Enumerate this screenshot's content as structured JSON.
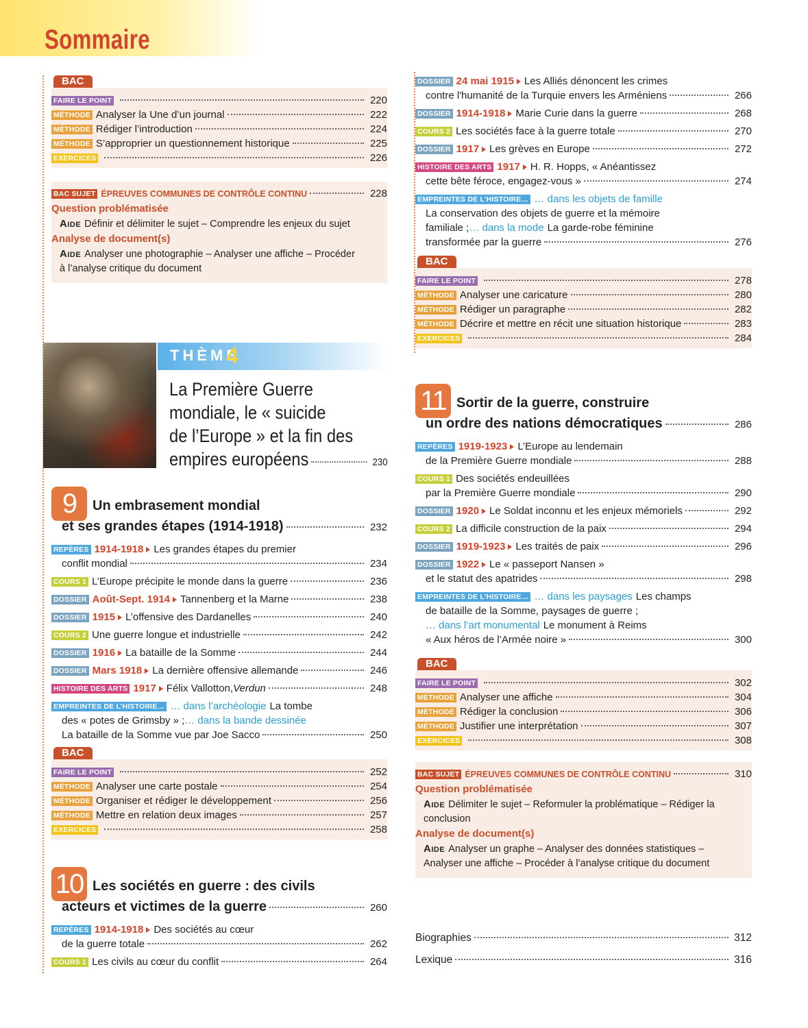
{
  "header": {
    "title": "Sommaire"
  },
  "left": [
    {
      "type": "bac",
      "label": "BAC",
      "entries": [
        {
          "tag": "FAIRE LE POINT",
          "tag_color": "#9b6bb0",
          "lines": [
            []
          ],
          "page": 220
        },
        {
          "tag": "MÉTHODE",
          "tag_color": "#e9a23b",
          "lines": [
            [
              "Analyser la Une d’un journal"
            ]
          ],
          "page": 222
        },
        {
          "tag": "MÉTHODE",
          "tag_color": "#e9a23b",
          "lines": [
            [
              "Rédiger l’introduction"
            ]
          ],
          "page": 224
        },
        {
          "tag": "MÉTHODE",
          "tag_color": "#e9a23b",
          "lines": [
            [
              "S’approprier un questionnement historique"
            ]
          ],
          "page": 225
        },
        {
          "tag": "EXERCICES",
          "tag_color": "#f2c318",
          "lines": [
            []
          ],
          "page": 226
        }
      ]
    },
    {
      "type": "sujet",
      "tag": "BAC SUJET",
      "tag_color": "#c8502a",
      "heading": "ÉPREUVES COMMUNES DE CONTRÔLE CONTINU",
      "page": 228,
      "parts": [
        {
          "heading": "Question problématisée",
          "aide": "Aide",
          "lines": [
            "Définir et délimiter le sujet – Comprendre les enjeux du sujet"
          ]
        },
        {
          "heading": "Analyse de document(s)",
          "aide": "Aide",
          "lines": [
            "Analyser une photographie – Analyser une affiche – Procéder",
            "à l’analyse critique du document"
          ]
        }
      ]
    },
    {
      "type": "theme",
      "label": "THÈME",
      "number": 4,
      "lines": [
        "La Première Guerre",
        "mondiale, le « suicide",
        "de l’Europe » et la fin des",
        "empires européens"
      ],
      "page": 230
    },
    {
      "type": "chapter",
      "number": 9,
      "lines": [
        "Un embrasement mondial",
        "et ses grandes étapes (1914-1918)"
      ],
      "page": 232,
      "entries": [
        {
          "tag": "REPÈRES",
          "tag_color": "#4ea7df",
          "date": "1914-1918",
          "lines": [
            [
              "Les grandes étapes du premier"
            ],
            [
              "conflit mondial"
            ]
          ],
          "page": 234
        },
        {
          "tag": "COURS 1",
          "tag_color": "#c4cf3a",
          "lines": [
            [
              "L’Europe précipite le monde dans la guerre"
            ]
          ],
          "page": 236
        },
        {
          "tag": "DOSSIER",
          "tag_color": "#7aa3bf",
          "date": "Août-Sept. 1914",
          "lines": [
            [
              "Tannenberg et la Marne"
            ]
          ],
          "page": 238
        },
        {
          "tag": "DOSSIER",
          "tag_color": "#7aa3bf",
          "date": "1915",
          "lines": [
            [
              "L’offensive des Dardanelles"
            ]
          ],
          "page": 240
        },
        {
          "tag": "COURS 2",
          "tag_color": "#c4cf3a",
          "lines": [
            [
              "Une guerre longue et industrielle"
            ]
          ],
          "page": 242
        },
        {
          "tag": "DOSSIER",
          "tag_color": "#7aa3bf",
          "date": "1916",
          "lines": [
            [
              "La bataille de la Somme"
            ]
          ],
          "page": 244
        },
        {
          "tag": "DOSSIER",
          "tag_color": "#7aa3bf",
          "date": "Mars 1918",
          "lines": [
            [
              "La dernière offensive allemande"
            ]
          ],
          "page": 246
        },
        {
          "tag": "HISTOIRE DES ARTS",
          "tag_color": "#d4477f",
          "date": "1917",
          "lines": [
            [
              "Félix Vallotton, ",
              {
                "text": "Verdun",
                "style": "italic"
              }
            ]
          ],
          "page": 248
        },
        {
          "tag": "EMPREINTES DE L’HISTOIRE…",
          "tag_color": "#4ea7df",
          "lines": [
            [
              {
                "text": "… dans l’archéologie",
                "style": "blue"
              },
              "La tombe"
            ],
            [
              "des « potes de Grimsby » ; ",
              {
                "text": "… dans la bande dessinée",
                "style": "blue"
              }
            ],
            [
              "La bataille de la Somme vue par Joe Sacco"
            ]
          ],
          "page": 250
        }
      ]
    },
    {
      "type": "bac",
      "label": "BAC",
      "entries": [
        {
          "tag": "FAIRE LE POINT",
          "tag_color": "#9b6bb0",
          "lines": [
            []
          ],
          "page": 252
        },
        {
          "tag": "MÉTHODE",
          "tag_color": "#e9a23b",
          "lines": [
            [
              "Analyser une carte postale"
            ]
          ],
          "page": 254
        },
        {
          "tag": "MÉTHODE",
          "tag_color": "#e9a23b",
          "lines": [
            [
              "Organiser et rédiger le développement"
            ]
          ],
          "page": 256
        },
        {
          "tag": "MÉTHODE",
          "tag_color": "#e9a23b",
          "lines": [
            [
              "Mettre en relation deux images"
            ]
          ],
          "page": 257
        },
        {
          "tag": "EXERCICES",
          "tag_color": "#f2c318",
          "lines": [
            []
          ],
          "page": 258
        }
      ]
    },
    {
      "type": "chapter",
      "number": 10,
      "lines": [
        "Les sociétés en guerre : des civils",
        "acteurs et victimes de la guerre"
      ],
      "page": 260,
      "entries": [
        {
          "tag": "REPÈRES",
          "tag_color": "#4ea7df",
          "date": "1914-1918",
          "lines": [
            [
              "Des sociétés au cœur"
            ],
            [
              "de la guerre totale"
            ]
          ],
          "page": 262
        },
        {
          "tag": "COURS 1",
          "tag_color": "#c4cf3a",
          "lines": [
            [
              "Les civils au cœur du conflit"
            ]
          ],
          "page": 264
        }
      ]
    }
  ],
  "right": [
    {
      "type": "list",
      "entries": [
        {
          "tag": "DOSSIER",
          "tag_color": "#7aa3bf",
          "date": "24 mai 1915",
          "lines": [
            [
              "Les Alliés dénoncent les crimes"
            ],
            [
              "contre l'humanité de la Turquie envers les Arméniens"
            ]
          ],
          "page": 266
        },
        {
          "tag": "DOSSIER",
          "tag_color": "#7aa3bf",
          "date": "1914-1918",
          "lines": [
            [
              "Marie Curie dans la guerre"
            ]
          ],
          "page": 268
        },
        {
          "tag": "COURS 2",
          "tag_color": "#c4cf3a",
          "lines": [
            [
              "Les sociétés face à la guerre totale"
            ]
          ],
          "page": 270
        },
        {
          "tag": "DOSSIER",
          "tag_color": "#7aa3bf",
          "date": "1917",
          "lines": [
            [
              "Les grèves en Europe"
            ]
          ],
          "page": 272
        },
        {
          "tag": "HISTOIRE DES ARTS",
          "tag_color": "#d4477f",
          "date": "1917",
          "lines": [
            [
              "H. R. Hopps, « Anéantissez"
            ],
            [
              "cette bête féroce, engagez-vous »"
            ]
          ],
          "page": 274
        },
        {
          "tag": "EMPREINTES DE L’HISTOIRE…",
          "tag_color": "#4ea7df",
          "lines": [
            [
              {
                "text": "… dans les objets de famille",
                "style": "blue"
              }
            ],
            [
              "La conservation des objets de guerre et la mémoire"
            ],
            [
              "familiale ; ",
              {
                "text": "… dans la mode",
                "style": "blue"
              },
              "La garde-robe féminine"
            ],
            [
              "transformée par la guerre"
            ]
          ],
          "page": 276
        }
      ]
    },
    {
      "type": "bac",
      "label": "BAC",
      "entries": [
        {
          "tag": "FAIRE LE POINT",
          "tag_color": "#9b6bb0",
          "lines": [
            []
          ],
          "page": 278
        },
        {
          "tag": "MÉTHODE",
          "tag_color": "#e9a23b",
          "lines": [
            [
              "Analyser une caricature"
            ]
          ],
          "page": 280
        },
        {
          "tag": "MÉTHODE",
          "tag_color": "#e9a23b",
          "lines": [
            [
              "Rédiger un paragraphe"
            ]
          ],
          "page": 282
        },
        {
          "tag": "MÉTHODE",
          "tag_color": "#e9a23b",
          "lines": [
            [
              "Décrire et mettre en récit une situation historique"
            ]
          ],
          "page": 283
        },
        {
          "tag": "EXERCICES",
          "tag_color": "#f2c318",
          "lines": [
            []
          ],
          "page": 284
        }
      ]
    },
    {
      "type": "chapter",
      "number": 11,
      "lines": [
        "Sortir de la guerre, construire",
        "un ordre des nations démocratiques"
      ],
      "page": 286,
      "entries": [
        {
          "tag": "REPÈRES",
          "tag_color": "#4ea7df",
          "date": "1919-1923",
          "lines": [
            [
              "L’Europe au lendemain"
            ],
            [
              "de la Première Guerre mondiale"
            ]
          ],
          "page": 288
        },
        {
          "tag": "COURS 1",
          "tag_color": "#c4cf3a",
          "lines": [
            [
              "Des sociétés endeuillées"
            ],
            [
              "par la Première Guerre mondiale"
            ]
          ],
          "page": 290
        },
        {
          "tag": "DOSSIER",
          "tag_color": "#7aa3bf",
          "date": "1920",
          "lines": [
            [
              "Le Soldat inconnu et les enjeux mémoriels"
            ]
          ],
          "page": 292
        },
        {
          "tag": "COURS 2",
          "tag_color": "#c4cf3a",
          "lines": [
            [
              "La difficile construction de la paix"
            ]
          ],
          "page": 294
        },
        {
          "tag": "DOSSIER",
          "tag_color": "#7aa3bf",
          "date": "1919-1923",
          "lines": [
            [
              "Les traités de paix"
            ]
          ],
          "page": 296
        },
        {
          "tag": "DOSSIER",
          "tag_color": "#7aa3bf",
          "date": "1922",
          "lines": [
            [
              "Le « passeport Nansen »"
            ],
            [
              "et le statut des apatrides"
            ]
          ],
          "page": 298
        },
        {
          "tag": "EMPREINTES DE L’HISTOIRE…",
          "tag_color": "#4ea7df",
          "lines": [
            [
              {
                "text": "… dans les paysages",
                "style": "blue"
              },
              "Les champs"
            ],
            [
              "de bataille de la Somme, paysages de guerre ;"
            ],
            [
              {
                "text": "… dans l’art monumental",
                "style": "blue"
              },
              "Le monument à Reims"
            ],
            [
              "« Aux héros de l’Armée noire »"
            ]
          ],
          "page": 300
        }
      ]
    },
    {
      "type": "bac",
      "label": "BAC",
      "entries": [
        {
          "tag": "FAIRE LE POINT",
          "tag_color": "#9b6bb0",
          "lines": [
            []
          ],
          "page": 302
        },
        {
          "tag": "MÉTHODE",
          "tag_color": "#e9a23b",
          "lines": [
            [
              "Analyser une affiche"
            ]
          ],
          "page": 304
        },
        {
          "tag": "MÉTHODE",
          "tag_color": "#e9a23b",
          "lines": [
            [
              "Rédiger la conclusion"
            ]
          ],
          "page": 306
        },
        {
          "tag": "MÉTHODE",
          "tag_color": "#e9a23b",
          "lines": [
            [
              "Justifier une interprétation"
            ]
          ],
          "page": 307
        },
        {
          "tag": "EXERCICES",
          "tag_color": "#f2c318",
          "lines": [
            []
          ],
          "page": 308
        }
      ]
    },
    {
      "type": "sujet",
      "tag": "BAC SUJET",
      "tag_color": "#c8502a",
      "heading": "ÉPREUVES COMMUNES DE CONTRÔLE CONTINU",
      "page": 310,
      "parts": [
        {
          "heading": "Question problématisée",
          "aide": "Aide",
          "lines": [
            "Délimiter le sujet – Reformuler la problématique – Rédiger la",
            "conclusion"
          ]
        },
        {
          "heading": "Analyse de document(s)",
          "aide": "Aide",
          "lines": [
            "Analyser un graphe – Analyser des données statistiques –",
            "Analyser une affiche – Procéder à l’analyse critique du document"
          ]
        }
      ]
    },
    {
      "type": "index",
      "entries": [
        {
          "lines": [
            [
              "Biographies"
            ]
          ],
          "page": 312
        },
        {
          "lines": [
            [
              "Lexique"
            ]
          ],
          "page": 316
        }
      ]
    }
  ]
}
